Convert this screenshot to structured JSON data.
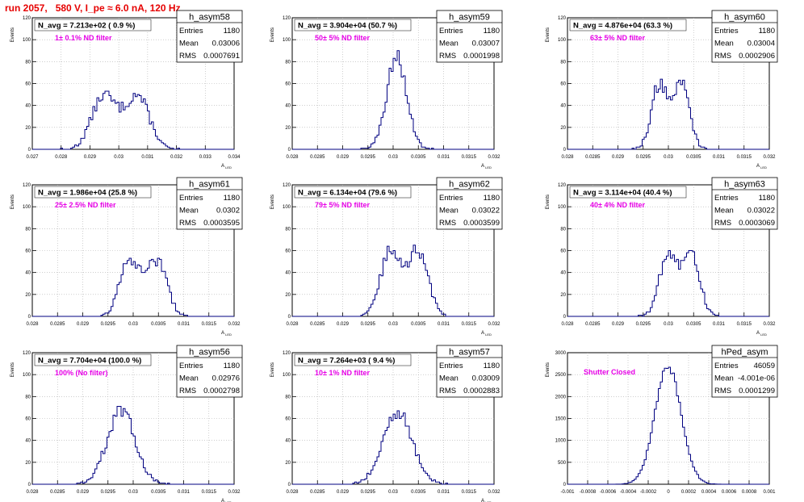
{
  "page_title": "run 2057,   580 V, I_pe ≈ 6.0 nA, 120 Hz",
  "colors": {
    "histogram": "#000080",
    "title_red": "#e60000",
    "annotation": "#e600e6",
    "grid": "#b0b0b0"
  },
  "chart_data": [
    {
      "type": "histogram",
      "name": "h_asym58",
      "title": "N_avg = 7.213e+02 ( 0.9 %)",
      "annotation": "1± 0.1% ND filter",
      "stats": {
        "entries": "1180",
        "mean": "0.03006",
        "rms": "0.0007691"
      },
      "ylabel": "Events",
      "xlabel": "A_LED",
      "xlim": [
        0.027,
        0.034
      ],
      "ylim": [
        0,
        120
      ],
      "xticks": [
        "0.027",
        "0.028",
        "0.029",
        "0.03",
        "0.031",
        "0.032",
        "0.033",
        "0.034"
      ],
      "yticks": [
        "0",
        "20",
        "40",
        "60",
        "80",
        "100",
        "120"
      ],
      "mean_value": 0.03006,
      "rms_value": 0.0007691,
      "peak": 54,
      "entries_n": 1180,
      "bimodal": true
    },
    {
      "type": "histogram",
      "name": "h_asym59",
      "title": "N_avg = 3.904e+04 (50.7 %)",
      "annotation": "50± 5% ND filter",
      "stats": {
        "entries": "1180",
        "mean": "0.03007",
        "rms": "0.0001998"
      },
      "ylabel": "Events",
      "xlabel": "A_LED",
      "xlim": [
        0.028,
        0.032
      ],
      "ylim": [
        0,
        120
      ],
      "xticks": [
        "0.028",
        "0.0285",
        "0.029",
        "0.0295",
        "0.03",
        "0.0305",
        "0.031",
        "0.0315",
        "0.032"
      ],
      "yticks": [
        "0",
        "20",
        "40",
        "60",
        "80",
        "100",
        "120"
      ],
      "mean_value": 0.03007,
      "rms_value": 0.0001998,
      "peak": 93,
      "entries_n": 1180,
      "bimodal": false
    },
    {
      "type": "histogram",
      "name": "h_asym60",
      "title": "N_avg = 4.876e+04 (63.3 %)",
      "annotation": "63± 5% ND filter",
      "stats": {
        "entries": "1180",
        "mean": "0.03004",
        "rms": "0.0002906"
      },
      "ylabel": "Events",
      "xlabel": "A_LED",
      "xlim": [
        0.028,
        0.032
      ],
      "ylim": [
        0,
        120
      ],
      "xticks": [
        "0.028",
        "0.0285",
        "0.029",
        "0.0295",
        "0.03",
        "0.0305",
        "0.031",
        "0.0315",
        "0.032"
      ],
      "yticks": [
        "0",
        "20",
        "40",
        "60",
        "80",
        "100",
        "120"
      ],
      "mean_value": 0.03004,
      "rms_value": 0.0002906,
      "peak": 66,
      "entries_n": 1180,
      "bimodal": true
    },
    {
      "type": "histogram",
      "name": "h_asym61",
      "title": "N_avg = 1.986e+04 (25.8 %)",
      "annotation": "25± 2.5% ND filter",
      "stats": {
        "entries": "1180",
        "mean": "0.0302",
        "rms": "0.0003595"
      },
      "ylabel": "Events",
      "xlabel": "A_LED",
      "xlim": [
        0.028,
        0.032
      ],
      "ylim": [
        0,
        120
      ],
      "xticks": [
        "0.028",
        "0.0285",
        "0.029",
        "0.0295",
        "0.03",
        "0.0305",
        "0.031",
        "0.0315",
        "0.032"
      ],
      "yticks": [
        "0",
        "20",
        "40",
        "60",
        "80",
        "100",
        "120"
      ],
      "mean_value": 0.0302,
      "rms_value": 0.0003595,
      "peak": 56,
      "entries_n": 1180,
      "bimodal": true
    },
    {
      "type": "histogram",
      "name": "h_asym62",
      "title": "N_avg = 6.134e+04 (79.6 %)",
      "annotation": "79± 5% ND filter",
      "stats": {
        "entries": "1180",
        "mean": "0.03022",
        "rms": "0.0003599"
      },
      "ylabel": "Events",
      "xlabel": "A_LED",
      "xlim": [
        0.028,
        0.032
      ],
      "ylim": [
        0,
        120
      ],
      "xticks": [
        "0.028",
        "0.0285",
        "0.029",
        "0.0295",
        "0.03",
        "0.0305",
        "0.031",
        "0.0315",
        "0.032"
      ],
      "yticks": [
        "0",
        "20",
        "40",
        "60",
        "80",
        "100",
        "120"
      ],
      "mean_value": 0.03022,
      "rms_value": 0.0003599,
      "peak": 66,
      "entries_n": 1180,
      "bimodal": true
    },
    {
      "type": "histogram",
      "name": "h_asym63",
      "title": "N_avg = 3.114e+04 (40.4 %)",
      "annotation": "40± 4% ND filter",
      "stats": {
        "entries": "1180",
        "mean": "0.03022",
        "rms": "0.0003069"
      },
      "ylabel": "Events",
      "xlabel": "A_LED",
      "xlim": [
        0.028,
        0.032
      ],
      "ylim": [
        0,
        120
      ],
      "xticks": [
        "0.028",
        "0.0285",
        "0.029",
        "0.0295",
        "0.03",
        "0.0305",
        "0.031",
        "0.0315",
        "0.032"
      ],
      "yticks": [
        "0",
        "20",
        "40",
        "60",
        "80",
        "100",
        "120"
      ],
      "mean_value": 0.03022,
      "rms_value": 0.0003069,
      "peak": 64,
      "entries_n": 1180,
      "bimodal": true
    },
    {
      "type": "histogram",
      "name": "h_asym56",
      "title": "N_avg = 7.704e+04 (100.0 %)",
      "annotation": "100% (No filter)",
      "stats": {
        "entries": "1180",
        "mean": "0.02976",
        "rms": "0.0002798"
      },
      "ylabel": "Events",
      "xlabel": "A_LED",
      "xlim": [
        0.028,
        0.032
      ],
      "ylim": [
        0,
        120
      ],
      "xticks": [
        "0.028",
        "0.0285",
        "0.029",
        "0.0295",
        "0.03",
        "0.0305",
        "0.031",
        "0.0315",
        "0.032"
      ],
      "yticks": [
        "0",
        "20",
        "40",
        "60",
        "80",
        "100",
        "120"
      ],
      "mean_value": 0.02976,
      "rms_value": 0.0002798,
      "peak": 74,
      "entries_n": 1180,
      "bimodal": false
    },
    {
      "type": "histogram",
      "name": "h_asym57",
      "title": "N_avg = 7.264e+03 ( 9.4 %)",
      "annotation": "10± 1% ND filter",
      "stats": {
        "entries": "1180",
        "mean": "0.03009",
        "rms": "0.0002883"
      },
      "ylabel": "Events",
      "xlabel": "A_LED",
      "xlim": [
        0.028,
        0.032
      ],
      "ylim": [
        0,
        120
      ],
      "xticks": [
        "0.028",
        "0.0285",
        "0.029",
        "0.0295",
        "0.03",
        "0.0305",
        "0.031",
        "0.0315",
        "0.032"
      ],
      "yticks": [
        "0",
        "20",
        "40",
        "60",
        "80",
        "100",
        "120"
      ],
      "mean_value": 0.03009,
      "rms_value": 0.0002883,
      "peak": 73,
      "entries_n": 1180,
      "bimodal": false
    },
    {
      "type": "histogram",
      "name": "hPed_asym",
      "title": "",
      "annotation": "Shutter Closed",
      "stats": {
        "entries": "46059",
        "mean": "-4.001e-06",
        "rms": "0.0001299"
      },
      "ylabel": "Events",
      "xlabel": "",
      "xlim": [
        -0.001,
        0.001
      ],
      "ylim": [
        0,
        3000
      ],
      "xticks": [
        "-0.001",
        "-0.0008",
        "-0.0006",
        "-0.0004",
        "-0.0002",
        "0",
        "0.0002",
        "0.0004",
        "0.0006",
        "0.0008",
        "0.001"
      ],
      "yticks": [
        "0",
        "500",
        "1000",
        "1500",
        "2000",
        "2500",
        "3000"
      ],
      "mean_value": -4e-06,
      "rms_value": 0.0001299,
      "peak": 2980,
      "entries_n": 46059,
      "bimodal": false
    }
  ]
}
